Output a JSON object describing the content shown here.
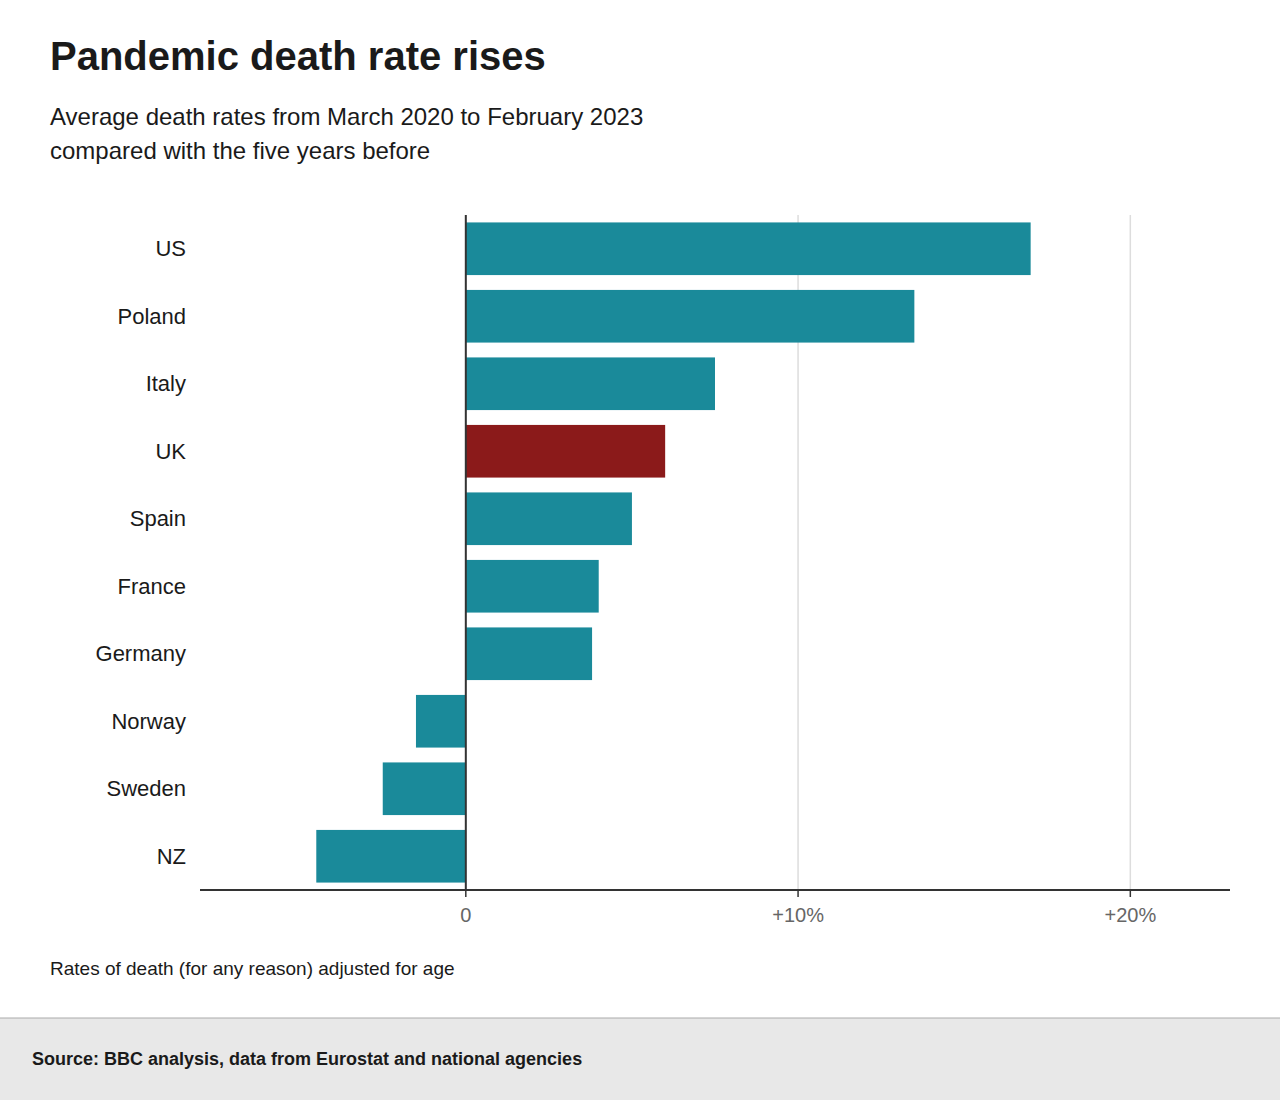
{
  "chart_data": {
    "type": "bar",
    "orientation": "horizontal",
    "title": "Pandemic death rate rises",
    "subtitle": [
      "Average death rates from March 2020 to February 2023",
      "compared with the five years before"
    ],
    "annotations": [
      "Rates of death (for any reason) adjusted for age",
      "Source: BBC analysis, data from Eurostat and national agencies"
    ],
    "categories": [
      "US",
      "Poland",
      "Italy",
      "UK",
      "Spain",
      "France",
      "Germany",
      "Norway",
      "Sweden",
      "NZ"
    ],
    "values": [
      17.0,
      13.5,
      7.5,
      6.0,
      5.0,
      4.0,
      3.8,
      -1.5,
      -2.5,
      -4.5
    ],
    "colors": [
      "#1a8a9a",
      "#1a8a9a",
      "#1a8a9a",
      "#8b1a1a",
      "#1a8a9a",
      "#1a8a9a",
      "#1a8a9a",
      "#1a8a9a",
      "#1a8a9a",
      "#1a8a9a"
    ],
    "xlim": [
      -8,
      23
    ],
    "xticks": [
      0,
      {
        "value": 10,
        "label": "+10%"
      },
      {
        "value": 20,
        "label": "+20%"
      }
    ],
    "grid": true
  }
}
